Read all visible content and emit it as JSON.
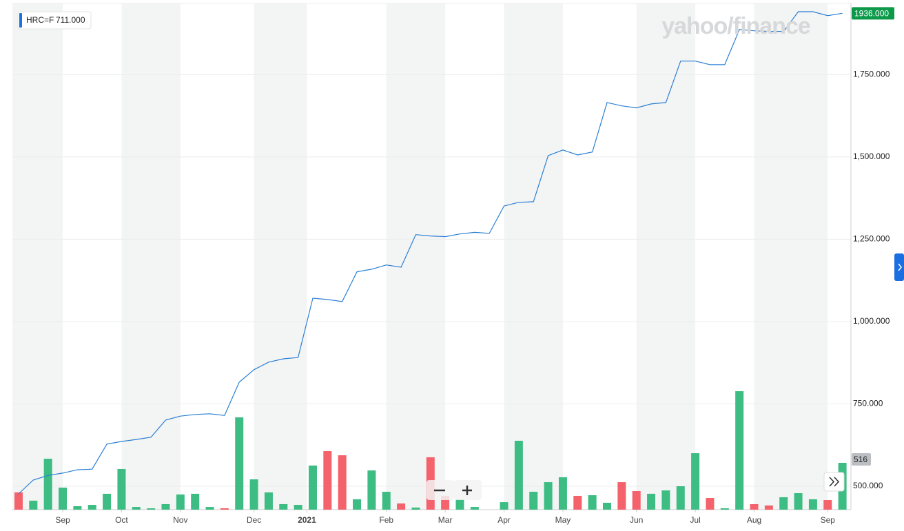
{
  "chart_data": {
    "type": "line",
    "legend_symbol": "HRC=F",
    "legend_value": "711.000",
    "watermark": "yahoo/finance",
    "x": [
      0,
      1,
      2,
      3,
      4,
      5,
      6,
      7,
      8,
      9,
      10,
      11,
      12,
      13,
      14,
      15,
      16,
      17,
      18,
      19,
      20,
      21,
      22,
      23,
      24,
      25,
      26,
      27,
      28,
      29,
      30,
      31,
      32,
      33,
      34,
      35,
      36,
      37,
      38,
      39,
      40,
      41,
      42,
      43,
      44,
      45,
      46,
      47,
      48,
      49,
      50,
      51,
      52,
      53,
      54,
      55,
      56
    ],
    "xlim": [
      -0.42,
      56.58
    ],
    "xticks": [
      {
        "value": 3,
        "label": "Sep"
      },
      {
        "value": 7,
        "label": "Oct"
      },
      {
        "value": 11,
        "label": "Nov"
      },
      {
        "value": 16,
        "label": "Dec"
      },
      {
        "value": 19.6,
        "label": "2021"
      },
      {
        "value": 25,
        "label": "Feb"
      },
      {
        "value": 29,
        "label": "Mar"
      },
      {
        "value": 33,
        "label": "Apr"
      },
      {
        "value": 37,
        "label": "May"
      },
      {
        "value": 42,
        "label": "Jun"
      },
      {
        "value": 46,
        "label": "Jul"
      },
      {
        "value": 50,
        "label": "Aug"
      },
      {
        "value": 55,
        "label": "Sep"
      }
    ],
    "ylim": [
      429,
      1966
    ],
    "yticks": [
      {
        "value": 500,
        "label": "500.000"
      },
      {
        "value": 750,
        "label": "750.000"
      },
      {
        "value": 1000,
        "label": "1,000.000"
      },
      {
        "value": 1250,
        "label": "1,250.000"
      },
      {
        "value": 1500,
        "label": "1,500.000"
      },
      {
        "value": 1750,
        "label": "1,750.000"
      }
    ],
    "grid": true,
    "series": [
      {
        "name": "HRC=F",
        "color": "#2a7fd4",
        "values": [
          477,
          519,
          533,
          540,
          550,
          552,
          628,
          636,
          642,
          649,
          701,
          713,
          718,
          720,
          715,
          816,
          854,
          877,
          887,
          891,
          1071,
          1067,
          1061,
          1151,
          1159,
          1172,
          1165,
          1264,
          1260,
          1258,
          1266,
          1271,
          1268,
          1351,
          1362,
          1364,
          1504,
          1521,
          1506,
          1515,
          1665,
          1655,
          1649,
          1661,
          1665,
          1791,
          1791,
          1780,
          1780,
          1887,
          1883,
          1881,
          1881,
          1941,
          1941,
          1929,
          1936
        ]
      },
      {
        "name": "Volume",
        "axis": "volume",
        "type": "bar",
        "values": [
          190,
          99,
          561,
          243,
          38,
          53,
          175,
          448,
          30,
          15,
          61,
          167,
          175,
          30,
          15,
          1017,
          334,
          190,
          61,
          53,
          486,
          645,
          599,
          114,
          432,
          197,
          68,
          23,
          577,
          152,
          114,
          30,
          null,
          83,
          759,
          197,
          303,
          357,
          152,
          159,
          76,
          303,
          205,
          175,
          212,
          258,
          622,
          129,
          15,
          1305,
          61,
          46,
          137,
          182,
          114,
          106,
          516
        ],
        "colors": [
          "#f4626b",
          "#3dbd84",
          "#3dbd84",
          "#3dbd84",
          "#3dbd84",
          "#3dbd84",
          "#3dbd84",
          "#3dbd84",
          "#3dbd84",
          "#3dbd84",
          "#3dbd84",
          "#3dbd84",
          "#3dbd84",
          "#3dbd84",
          "#f4626b",
          "#3dbd84",
          "#3dbd84",
          "#3dbd84",
          "#3dbd84",
          "#3dbd84",
          "#3dbd84",
          "#f4626b",
          "#f4626b",
          "#3dbd84",
          "#3dbd84",
          "#3dbd84",
          "#f4626b",
          "#3dbd84",
          "#f4626b",
          "#f4626b",
          "#3dbd84",
          "#3dbd84",
          "#3dbd84",
          "#3dbd84",
          "#3dbd84",
          "#3dbd84",
          "#3dbd84",
          "#3dbd84",
          "#f4626b",
          "#3dbd84",
          "#3dbd84",
          "#f4626b",
          "#f4626b",
          "#3dbd84",
          "#3dbd84",
          "#3dbd84",
          "#3dbd84",
          "#f4626b",
          "#3dbd84",
          "#3dbd84",
          "#f4626b",
          "#f4626b",
          "#3dbd84",
          "#3dbd84",
          "#3dbd84",
          "#f4626b",
          "#3dbd84"
        ]
      }
    ],
    "volume_lim": [
      0,
      5577
    ],
    "current_price": {
      "value": 1936,
      "label": "1936.000",
      "color": "#0c9a4a"
    },
    "current_volume": 516
  }
}
